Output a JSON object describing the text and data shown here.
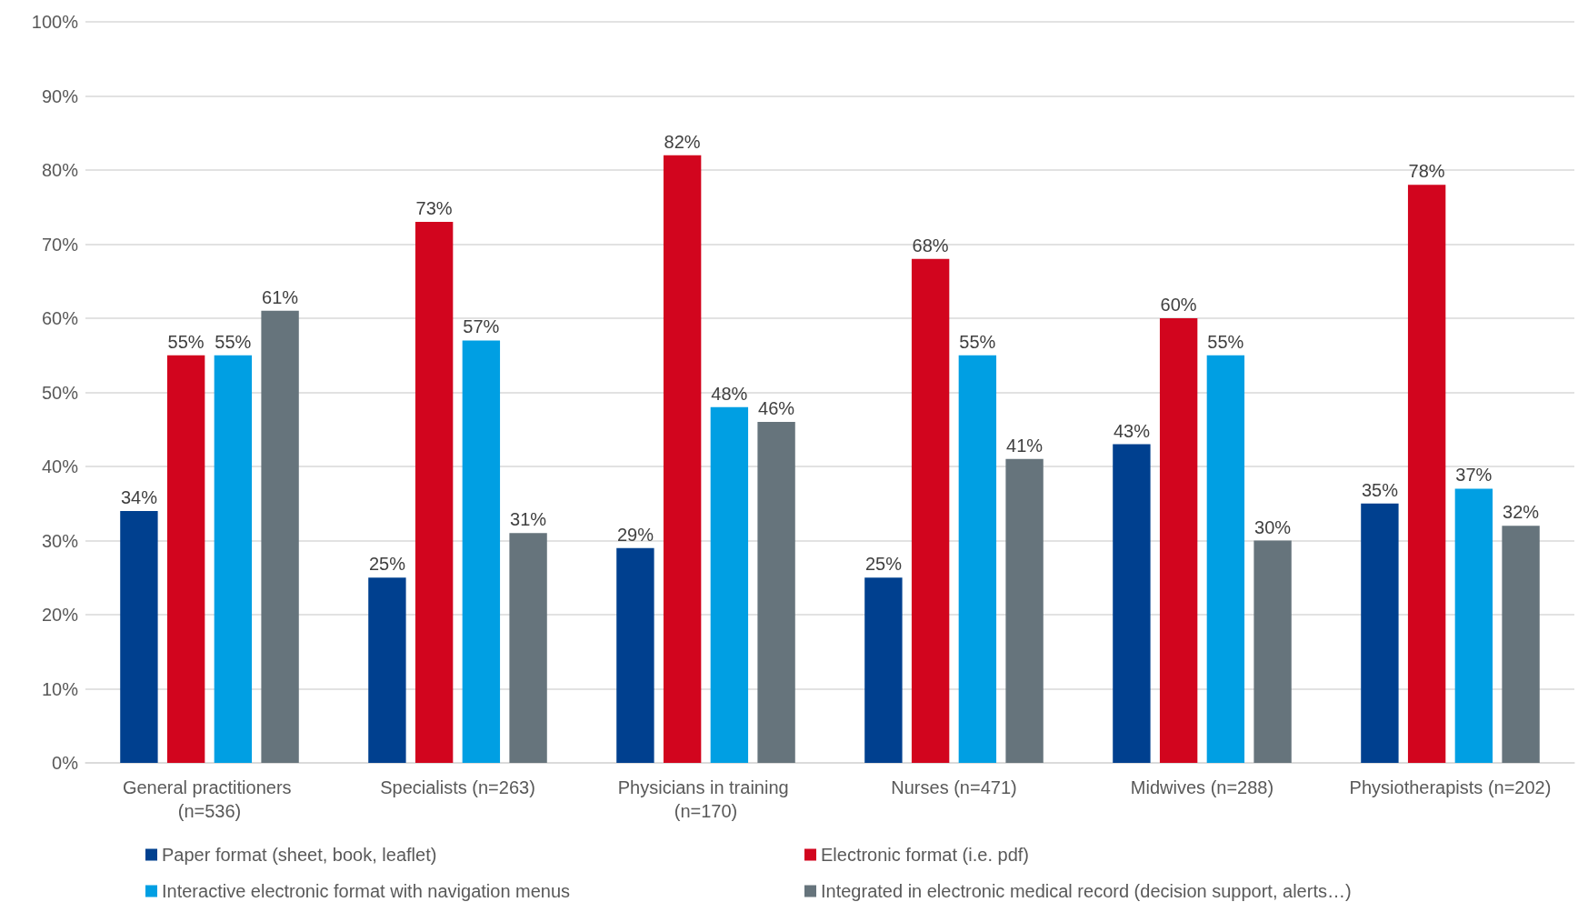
{
  "chart_data": {
    "type": "bar",
    "categories": [
      "General practitioners (n=536)",
      "Specialists (n=263)",
      "Physicians in training (n=170)",
      "Nurses (n=471)",
      "Midwives (n=288)",
      "Physiotherapists (n=202)"
    ],
    "series": [
      {
        "name": "Paper format (sheet, book, leaflet)",
        "color": "#00408f",
        "values": [
          34,
          25,
          29,
          25,
          43,
          35
        ],
        "value_labels": [
          "34%",
          "25%",
          "29%",
          "25%",
          "43%",
          "35%"
        ]
      },
      {
        "name": "Electronic format (i.e. pdf)",
        "color": "#d2051e",
        "values": [
          55,
          73,
          82,
          68,
          60,
          78
        ],
        "value_labels": [
          "55%",
          "73%",
          "82%",
          "68%",
          "60%",
          "78%"
        ]
      },
      {
        "name": "Interactive electronic format with navigation menus",
        "color": "#009fe3",
        "values": [
          55,
          57,
          48,
          55,
          55,
          37
        ],
        "value_labels": [
          "55%",
          "57%",
          "48%",
          "55%",
          "55%",
          "37%"
        ]
      },
      {
        "name": "Integrated in electronic medical record (decision support, alerts…)",
        "color": "#66747c",
        "values": [
          61,
          31,
          46,
          41,
          30,
          32
        ],
        "value_labels": [
          "61%",
          "31%",
          "46%",
          "41%",
          "30%",
          "32%"
        ]
      }
    ],
    "ylim": [
      0,
      100
    ],
    "yticks": [
      {
        "value": 0,
        "label": "0%"
      },
      {
        "value": 10,
        "label": "10%"
      },
      {
        "value": 20,
        "label": "20%"
      },
      {
        "value": 30,
        "label": "30%"
      },
      {
        "value": 40,
        "label": "40%"
      },
      {
        "value": 50,
        "label": "50%"
      },
      {
        "value": 60,
        "label": "60%"
      },
      {
        "value": 70,
        "label": "70%"
      },
      {
        "value": 80,
        "label": "80%"
      },
      {
        "value": 90,
        "label": "90%"
      },
      {
        "value": 100,
        "label": "100%"
      }
    ],
    "grid": "y",
    "legend": "bottom"
  }
}
